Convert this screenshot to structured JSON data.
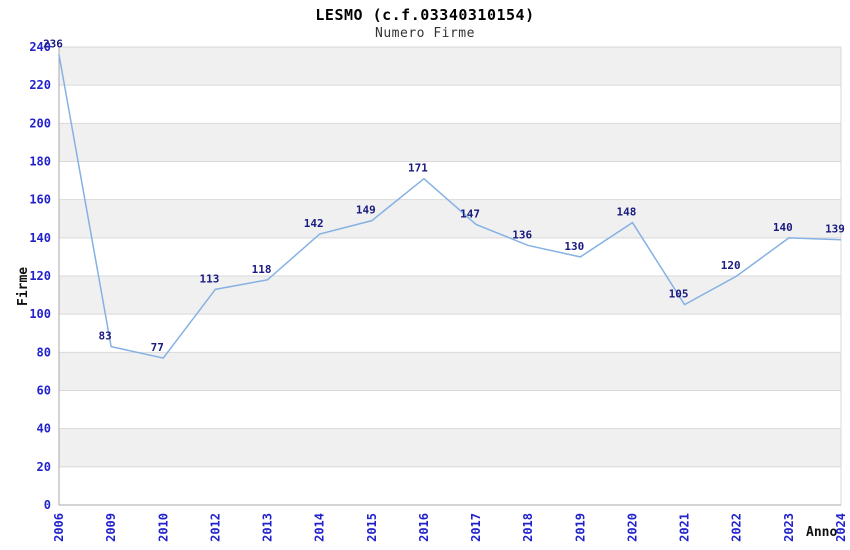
{
  "chart_data": {
    "type": "line",
    "title": "LESMO (c.f.03340310154)",
    "subtitle": "Numero Firme",
    "xlabel": "Anno",
    "ylabel": "Firme",
    "categories": [
      "2006",
      "2009",
      "2010",
      "2012",
      "2013",
      "2014",
      "2015",
      "2016",
      "2017",
      "2018",
      "2019",
      "2020",
      "2021",
      "2022",
      "2023",
      "2024"
    ],
    "values": [
      236,
      83,
      77,
      113,
      118,
      142,
      149,
      171,
      147,
      136,
      130,
      148,
      105,
      120,
      140,
      139
    ],
    "ylim": [
      0,
      240
    ],
    "ytick_step": 20,
    "grid": "horizontal",
    "banded_background": true,
    "legend": "none",
    "colors": {
      "line": "#85b1e3",
      "tick_labels": "#2222cc",
      "data_labels": "#1a1a80",
      "band": "#f0f0f0",
      "grid": "#d9d9d9",
      "axis": "#aaaaaa",
      "title": "#000000",
      "subtitle": "#333333",
      "axis_titles": "#111111",
      "background": "#ffffff"
    }
  }
}
